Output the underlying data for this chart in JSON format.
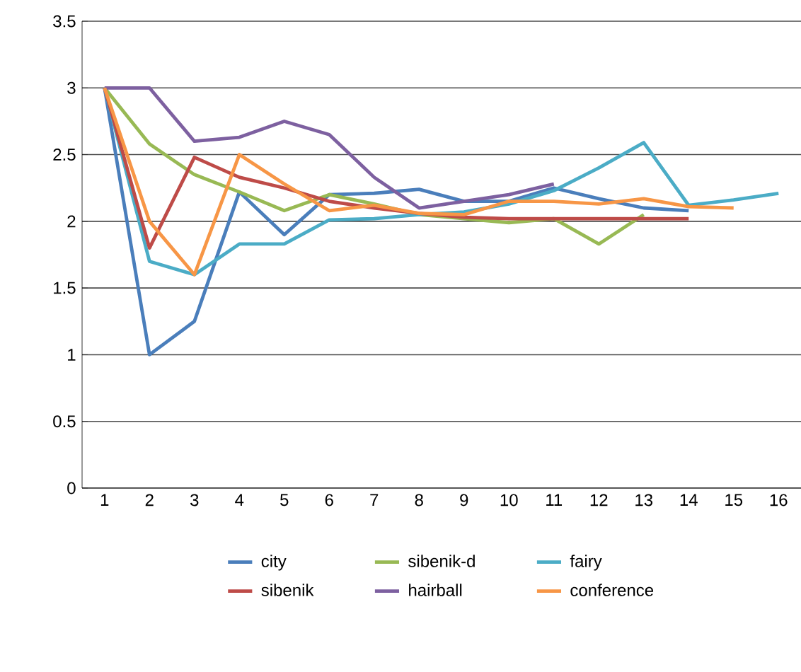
{
  "chart_data": {
    "type": "line",
    "categories": [
      "1",
      "2",
      "3",
      "4",
      "5",
      "6",
      "7",
      "8",
      "9",
      "10",
      "11",
      "12",
      "13",
      "14",
      "15",
      "16"
    ],
    "ylim": [
      0,
      3.5
    ],
    "yticks": [
      0,
      0.5,
      1,
      1.5,
      2,
      2.5,
      3,
      3.5
    ],
    "grid": "y",
    "legend": "bottom",
    "marker": "none",
    "line_style": "solid",
    "series": [
      {
        "name": "city",
        "color": "#4a7ebb",
        "values": [
          3,
          1.0,
          1.25,
          2.22,
          1.9,
          2.2,
          2.21,
          2.24,
          2.15,
          2.15,
          2.25,
          2.17,
          2.1,
          2.08,
          null,
          null
        ]
      },
      {
        "name": "sibenik-d",
        "color": "#98b954",
        "values": [
          3,
          2.58,
          2.35,
          2.22,
          2.08,
          2.2,
          2.13,
          2.05,
          2.02,
          1.99,
          2.02,
          1.83,
          2.05,
          null,
          null,
          null
        ]
      },
      {
        "name": "fairy",
        "color": "#4bacc6",
        "values": [
          3,
          1.7,
          1.6,
          1.83,
          1.83,
          2.01,
          2.02,
          2.05,
          2.07,
          2.13,
          2.23,
          2.4,
          2.59,
          2.12,
          2.16,
          2.21
        ]
      },
      {
        "name": "sibenik",
        "color": "#be4b48",
        "values": [
          3,
          1.8,
          2.48,
          2.33,
          2.25,
          2.15,
          2.1,
          2.06,
          2.03,
          2.02,
          2.02,
          2.02,
          2.02,
          2.02,
          null,
          null
        ]
      },
      {
        "name": "hairball",
        "color": "#7d60a0",
        "values": [
          3,
          3,
          2.6,
          2.63,
          2.75,
          2.65,
          2.33,
          2.1,
          2.15,
          2.2,
          2.28,
          null,
          null,
          null,
          null,
          null
        ]
      },
      {
        "name": "conference",
        "color": "#f79646",
        "values": [
          3,
          2.0,
          1.6,
          2.5,
          2.28,
          2.08,
          2.12,
          2.06,
          2.05,
          2.15,
          2.15,
          2.13,
          2.17,
          2.11,
          2.1,
          null
        ]
      }
    ]
  }
}
